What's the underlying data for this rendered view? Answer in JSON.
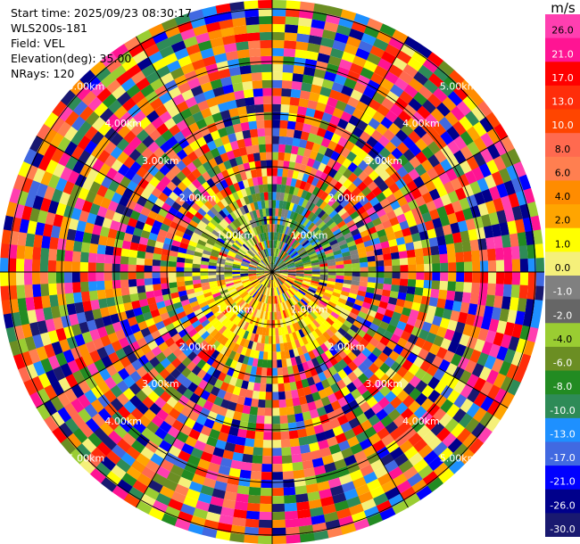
{
  "header": {
    "start_time": "Start time: 2025/09/23 08:30:17",
    "instrument": "WLS200s-181",
    "field": "Field: VEL",
    "elevation": "Elevation(deg): 35.00",
    "nrays": "NRays: 120"
  },
  "colorbar": {
    "unit": "m/s",
    "ticks": [
      "26.0",
      "21.0",
      "17.0",
      "13.0",
      "10.0",
      "8.0",
      "6.0",
      "4.0",
      "2.0",
      "1.0",
      "0.0",
      "-1.0",
      "-2.0",
      "-4.0",
      "-6.0",
      "-8.0",
      "-10.0",
      "-13.0",
      "-17.0",
      "-21.0",
      "-26.0",
      "-30.0"
    ],
    "colors": [
      "#ff3fb0",
      "#ff1493",
      "#ff0000",
      "#ff2d0a",
      "#ff4500",
      "#ff6a4f",
      "#ff7f50",
      "#ff8c00",
      "#ffa500",
      "#ffff00",
      "#f5f07a",
      "#808080",
      "#666666",
      "#9acd32",
      "#6b8e23",
      "#228b22",
      "#2e8b57",
      "#1e90ff",
      "#4169e1",
      "#0000ff",
      "#00008b",
      "#191970"
    ]
  },
  "chart_data": {
    "type": "heatmap",
    "projection": "polar-ppi",
    "field": "VEL",
    "nrays": 120,
    "ring_labels": [
      "1.00km",
      "2.00km",
      "3.00km",
      "4.00km",
      "5.00km"
    ],
    "ring_label_text": [
      "1.00km",
      "2.00km",
      "3.00km",
      "4.00km",
      "5.00km"
    ]
  }
}
